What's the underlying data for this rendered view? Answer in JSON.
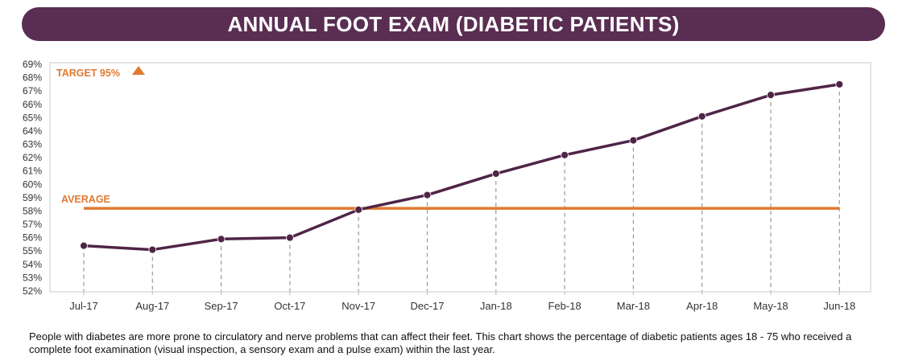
{
  "header": {
    "title": "ANNUAL FOOT EXAM (DIABETIC PATIENTS)"
  },
  "caption": "People with diabetes are more prone to circulatory and nerve problems that can affect their feet.  This chart shows the percentage of diabetic patients ages 18 - 75 who received a complete foot examination (visual inspection, a sensory exam and a pulse exam) within the last year.",
  "colors": {
    "banner": "#5a2d52",
    "series": "#4f2547",
    "average": "#e07a30",
    "target": "#e07a30",
    "grid": "#9a9a9a",
    "axis_text": "#333333"
  },
  "chart_data": {
    "type": "line",
    "categories": [
      "Jul-17",
      "Aug-17",
      "Sep-17",
      "Oct-17",
      "Nov-17",
      "Dec-17",
      "Jan-18",
      "Feb-18",
      "Mar-18",
      "Apr-18",
      "May-18",
      "Jun-18"
    ],
    "values": [
      55.4,
      55.1,
      55.9,
      56.0,
      58.1,
      59.2,
      60.8,
      62.2,
      63.3,
      65.1,
      66.7,
      67.5
    ],
    "ylim": [
      52,
      69
    ],
    "yticks": [
      "52%",
      "53%",
      "54%",
      "55%",
      "56%",
      "57%",
      "58%",
      "59%",
      "60%",
      "61%",
      "62%",
      "63%",
      "64%",
      "65%",
      "66%",
      "67%",
      "68%",
      "69%"
    ],
    "average": {
      "label": "AVERAGE",
      "value": 58.2
    },
    "target": {
      "label": "TARGET 95%",
      "icon": "up-triangle-icon"
    },
    "vertical_gridlines": "dashed",
    "horizontal_gridlines": false
  }
}
